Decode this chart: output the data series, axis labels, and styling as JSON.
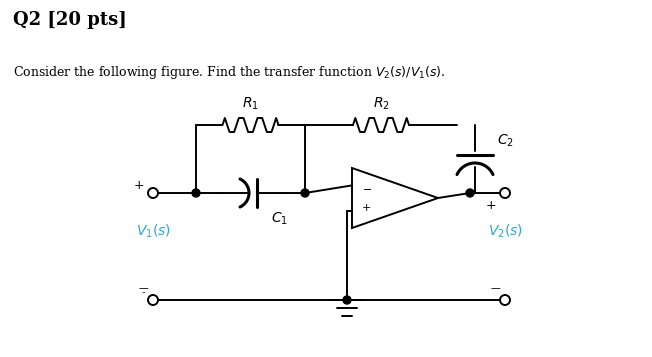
{
  "title_line1": "Q2 [20 pts]",
  "title_line2": "Consider the following figure. Find the transfer function $V_2(s)/V_1(s)$.",
  "bg_color": "#ffffff",
  "text_color": "#000000",
  "label_color": "#29a8d0",
  "R1_label": "$R_1$",
  "R2_label": "$R_2$",
  "C1_label": "$C_1$",
  "C2_label": "$C_2$",
  "V1_label": "$V_1(s)$",
  "V2_label": "$V_2(s)$"
}
